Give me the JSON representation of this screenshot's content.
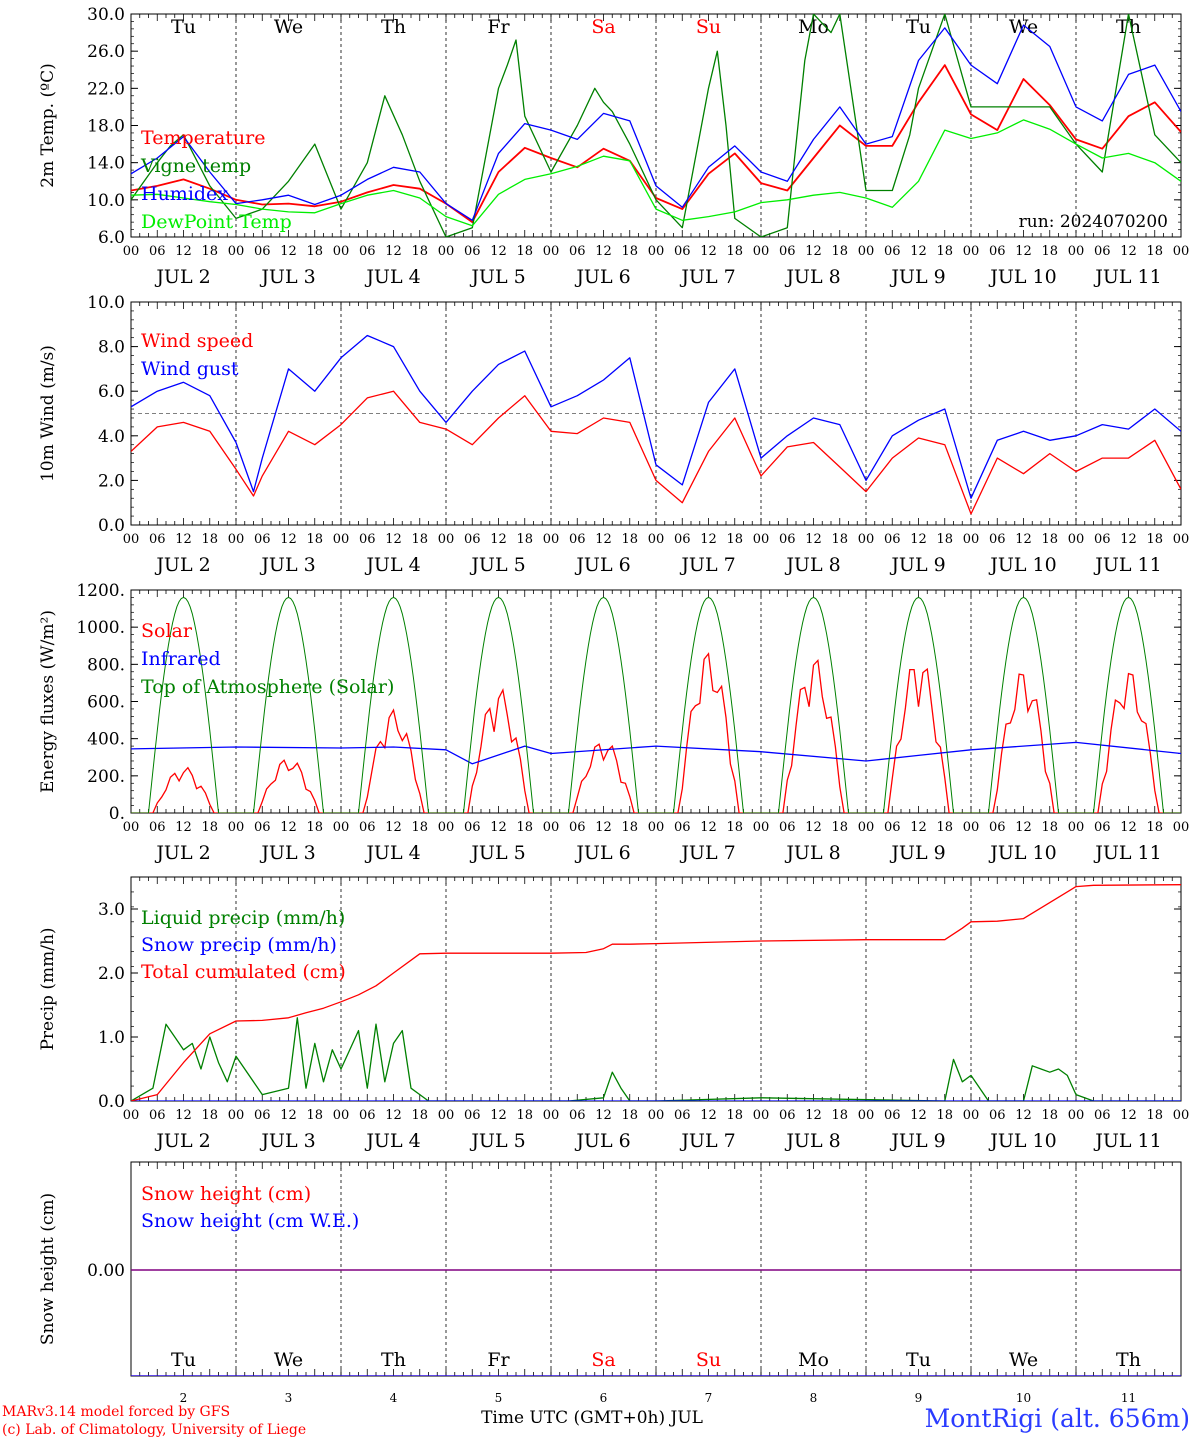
{
  "colors": {
    "red": "#ff0000",
    "green": "#008000",
    "blue": "#0000ff",
    "lightgreen": "#00ee00",
    "purple": "#800080",
    "footer_blue": "#2a3bff"
  },
  "run_label": "run: 2024070200",
  "weekday_labels": [
    "Tu",
    "We",
    "Th",
    "Fr",
    "Sa",
    "Su",
    "Mo",
    "Tu",
    "We",
    "Th"
  ],
  "weekend_flags": [
    false,
    false,
    false,
    false,
    true,
    true,
    false,
    false,
    false,
    false
  ],
  "date_labels": [
    "JUL  2",
    "JUL  3",
    "JUL  4",
    "JUL  5",
    "JUL  6",
    "JUL  7",
    "JUL  8",
    "JUL  9",
    "JUL 10",
    "JUL 11"
  ],
  "hour_labels": [
    "00",
    "06",
    "12",
    "18"
  ],
  "bottom_day_numbers": [
    "2",
    "3",
    "4",
    "5",
    "6",
    "7",
    "8",
    "9",
    "10",
    "11"
  ],
  "xlabel": "Time UTC (GMT+0h) JUL",
  "footer": {
    "credit1": "MARv3.14 model forced by GFS",
    "credit2": "(c) Lab. of Climatology, University of Liege",
    "station": "MontRigi (alt. 656m)"
  },
  "chart_data": [
    {
      "type": "line",
      "panel": "temperature",
      "x_unit": "hours since 2 JUL 00 UTC",
      "xlim": [
        0,
        240
      ],
      "ylabel": "2m Temp. (ºC)",
      "ylim": [
        6,
        30
      ],
      "yticks": [
        "6.0",
        "10.0",
        "14.0",
        "18.0",
        "22.0",
        "26.0",
        "30.0"
      ],
      "series": [
        {
          "name": "Temperature",
          "color": "red",
          "x": [
            0,
            6,
            12,
            18,
            24,
            30,
            36,
            42,
            48,
            54,
            60,
            66,
            72,
            78,
            84,
            90,
            96,
            102,
            108,
            114,
            120,
            126,
            132,
            138,
            144,
            150,
            156,
            162,
            168,
            174,
            180,
            186,
            192,
            198,
            204,
            210,
            216,
            222,
            228,
            234,
            240
          ],
          "y": [
            11,
            11.5,
            12.2,
            11.2,
            10,
            9.5,
            9.6,
            9.3,
            9.8,
            10.8,
            11.6,
            11.2,
            9.6,
            7.6,
            13,
            15.6,
            14.5,
            13.5,
            15.5,
            14.2,
            10.2,
            9,
            12.8,
            15,
            11.8,
            11,
            14.5,
            18,
            15.8,
            15.8,
            20.5,
            24.5,
            19.2,
            17.5,
            23,
            20.2,
            16.5,
            15.5,
            19,
            20.5,
            17.3
          ]
        },
        {
          "name": "Vigne temp",
          "color": "green",
          "x": [
            0,
            6,
            9,
            12,
            18,
            24,
            30,
            36,
            42,
            48,
            54,
            58,
            62,
            66,
            72,
            78,
            84,
            86,
            88,
            90,
            96,
            102,
            106,
            108,
            110,
            114,
            120,
            126,
            132,
            134,
            136,
            138,
            144,
            150,
            154,
            156,
            160,
            162,
            168,
            174,
            178,
            180,
            186,
            192,
            198,
            204,
            210,
            216,
            222,
            228,
            234,
            240
          ],
          "y": [
            10,
            14,
            15.8,
            17,
            11.5,
            8,
            9,
            12,
            16,
            9,
            14,
            21.2,
            17,
            12,
            6,
            7,
            22,
            24.5,
            27.2,
            19,
            13,
            18,
            22,
            20.5,
            19.5,
            16,
            10,
            7,
            22,
            26,
            18,
            8,
            6,
            7,
            25,
            30,
            28,
            30,
            11,
            11,
            17,
            22,
            30,
            20,
            20,
            20,
            20,
            16,
            13,
            30,
            17,
            14
          ]
        },
        {
          "name": "Humidex",
          "color": "blue",
          "x": [
            0,
            6,
            12,
            18,
            24,
            30,
            36,
            42,
            48,
            54,
            60,
            66,
            72,
            78,
            84,
            90,
            96,
            102,
            108,
            114,
            120,
            126,
            132,
            138,
            144,
            150,
            156,
            162,
            168,
            174,
            180,
            186,
            192,
            198,
            204,
            210,
            216,
            222,
            228,
            234,
            240
          ],
          "y": [
            12.8,
            14.5,
            16.8,
            13,
            9.6,
            10,
            10.5,
            9.5,
            10.5,
            12.2,
            13.5,
            13,
            9.6,
            7.8,
            15,
            18.2,
            17.5,
            16.5,
            19.3,
            18.5,
            11.5,
            9.2,
            13.5,
            15.8,
            13,
            12,
            16.5,
            20,
            16,
            16.8,
            25,
            28.5,
            24.5,
            22.5,
            28.8,
            26.5,
            20,
            18.5,
            23.5,
            24.5,
            19.5
          ]
        },
        {
          "name": "DewPoint Temp",
          "color": "lightgreen",
          "x": [
            0,
            6,
            12,
            18,
            24,
            30,
            36,
            42,
            48,
            54,
            60,
            66,
            72,
            78,
            84,
            90,
            96,
            102,
            108,
            114,
            120,
            126,
            132,
            138,
            144,
            150,
            156,
            162,
            168,
            174,
            180,
            186,
            192,
            198,
            204,
            210,
            216,
            222,
            228,
            234,
            240
          ],
          "y": [
            10.5,
            10.6,
            10.2,
            9.8,
            9.5,
            9,
            8.7,
            8.6,
            9.6,
            10.5,
            11,
            10.2,
            8.2,
            7.2,
            10.6,
            12.2,
            12.8,
            13.6,
            14.7,
            14.2,
            9,
            7.8,
            8.2,
            8.7,
            9.7,
            10,
            10.5,
            10.8,
            10.2,
            9.2,
            12,
            17.5,
            16.6,
            17.2,
            18.6,
            17.6,
            16,
            14.5,
            15,
            14,
            12
          ]
        }
      ]
    },
    {
      "type": "line",
      "panel": "wind",
      "xlim": [
        0,
        240
      ],
      "ylabel": "10m Wind (m/s)",
      "ylim": [
        0,
        10
      ],
      "yticks": [
        "0.0",
        "2.0",
        "4.0",
        "6.0",
        "8.0",
        "10.0"
      ],
      "reference_line": 5,
      "series": [
        {
          "name": "Wind speed",
          "color": "red",
          "x": [
            0,
            6,
            12,
            18,
            24,
            28,
            30,
            36,
            42,
            48,
            54,
            60,
            66,
            72,
            78,
            84,
            90,
            96,
            102,
            108,
            114,
            120,
            126,
            132,
            138,
            144,
            150,
            156,
            162,
            168,
            174,
            180,
            186,
            192,
            198,
            204,
            210,
            216,
            222,
            228,
            234,
            240
          ],
          "y": [
            3.3,
            4.4,
            4.6,
            4.2,
            2.5,
            1.3,
            2.2,
            4.2,
            3.6,
            4.5,
            5.7,
            6,
            4.6,
            4.3,
            3.6,
            4.8,
            5.8,
            4.2,
            4.1,
            4.8,
            4.6,
            2,
            1,
            3.3,
            4.8,
            2.2,
            3.5,
            3.7,
            2.6,
            1.5,
            3,
            3.9,
            3.6,
            0.5,
            3,
            2.3,
            3.2,
            2.4,
            3,
            3,
            3.8,
            1.6
          ]
        },
        {
          "name": "Wind gust",
          "color": "blue",
          "x": [
            0,
            6,
            12,
            18,
            24,
            28,
            30,
            36,
            42,
            48,
            54,
            60,
            66,
            72,
            78,
            84,
            90,
            96,
            102,
            108,
            114,
            120,
            126,
            132,
            138,
            144,
            150,
            156,
            162,
            168,
            174,
            180,
            186,
            192,
            198,
            204,
            210,
            216,
            222,
            228,
            234,
            240
          ],
          "y": [
            5.3,
            6,
            6.4,
            5.8,
            3.7,
            1.5,
            3,
            7,
            6,
            7.5,
            8.5,
            8,
            6,
            4.6,
            6,
            7.2,
            7.8,
            5.3,
            5.8,
            6.5,
            7.5,
            2.7,
            1.8,
            5.5,
            7,
            3,
            4,
            4.8,
            4.5,
            2,
            4,
            4.7,
            5.2,
            1.2,
            3.8,
            4.2,
            3.8,
            4,
            4.5,
            4.3,
            5.2,
            4.2
          ]
        }
      ]
    },
    {
      "type": "line",
      "panel": "energy",
      "xlim": [
        0,
        240
      ],
      "ylabel": "Energy fluxes (W/m²)",
      "ylim": [
        0,
        1200
      ],
      "yticks": [
        "0.",
        "200.",
        "400.",
        "600.",
        "800.",
        "1000.",
        "1200."
      ],
      "series": [
        {
          "name": "Solar",
          "color": "red",
          "daily_peak_approx": [
            250,
            300,
            560,
            680,
            400,
            880,
            850,
            860,
            780,
            780
          ]
        },
        {
          "name": "Infrared",
          "color": "blue",
          "x": [
            0,
            24,
            48,
            60,
            72,
            78,
            90,
            96,
            120,
            144,
            168,
            180,
            192,
            216,
            240
          ],
          "y": [
            345,
            355,
            350,
            355,
            340,
            265,
            360,
            320,
            360,
            330,
            280,
            310,
            340,
            380,
            320
          ]
        },
        {
          "name": "Top of Atmosphere (Solar)",
          "color": "green",
          "daily_peak": 1160,
          "day_length_hours": [
            4,
            20
          ]
        }
      ]
    },
    {
      "type": "line",
      "panel": "precip",
      "xlim": [
        0,
        240
      ],
      "ylabel": "Precip (mm/h)",
      "ylim": [
        0,
        3.5
      ],
      "yticks": [
        "0.0",
        "1.0",
        "2.0",
        "3.0"
      ],
      "series": [
        {
          "name": "Liquid precip (mm/h)",
          "color": "green",
          "x": [
            0,
            5,
            8,
            10,
            12,
            14,
            16,
            18,
            20,
            22,
            24,
            30,
            36,
            38,
            40,
            42,
            44,
            46,
            48,
            52,
            54,
            56,
            58,
            60,
            62,
            64,
            66,
            68,
            72,
            100,
            108,
            110,
            112,
            114,
            120,
            144,
            186,
            188,
            190,
            192,
            194,
            196,
            204,
            206,
            208,
            210,
            212,
            214,
            216,
            220,
            240
          ],
          "y": [
            0,
            0.2,
            1.2,
            1,
            0.8,
            0.9,
            0.5,
            1,
            0.6,
            0.3,
            0.7,
            0.1,
            0.2,
            1.3,
            0.2,
            0.9,
            0.3,
            0.8,
            0.5,
            1.1,
            0.2,
            1.2,
            0.3,
            0.9,
            1.1,
            0.2,
            0.1,
            0,
            0,
            0,
            0.05,
            0.45,
            0.2,
            0,
            0,
            0.05,
            0,
            0.65,
            0.3,
            0.4,
            0.2,
            0,
            0,
            0.55,
            0.5,
            0.45,
            0.5,
            0.4,
            0.1,
            0,
            0
          ]
        },
        {
          "name": "Snow precip (mm/h)",
          "color": "blue",
          "x": [
            0,
            240
          ],
          "y": [
            0,
            0
          ]
        },
        {
          "name": "Total cumulated (cm)",
          "color": "red",
          "x": [
            0,
            6,
            12,
            18,
            24,
            30,
            36,
            40,
            44,
            48,
            52,
            56,
            60,
            66,
            72,
            96,
            104,
            108,
            110,
            114,
            120,
            144,
            168,
            186,
            190,
            192,
            198,
            204,
            210,
            216,
            220,
            240
          ],
          "y": [
            0,
            0.1,
            0.6,
            1.05,
            1.25,
            1.26,
            1.3,
            1.38,
            1.45,
            1.55,
            1.66,
            1.8,
            2.0,
            2.3,
            2.31,
            2.31,
            2.32,
            2.38,
            2.45,
            2.45,
            2.46,
            2.5,
            2.52,
            2.52,
            2.7,
            2.8,
            2.81,
            2.85,
            3.1,
            3.35,
            3.37,
            3.38
          ]
        }
      ]
    },
    {
      "type": "line",
      "panel": "snow",
      "xlim": [
        0,
        240
      ],
      "ylabel": "Snow height (cm)",
      "yticks": [
        "0.00"
      ],
      "series": [
        {
          "name": "Snow height (cm)",
          "color": "red",
          "x": [
            0,
            240
          ],
          "y": [
            0,
            0
          ]
        },
        {
          "name": "Snow height (cm W.E.)",
          "color": "blue",
          "x": [
            0,
            240
          ],
          "y": [
            0,
            0
          ]
        }
      ]
    }
  ]
}
